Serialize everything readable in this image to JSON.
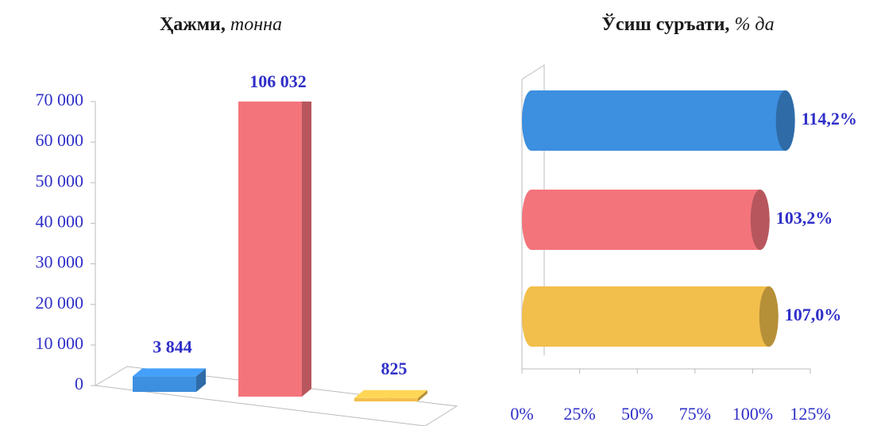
{
  "chart_data": [
    {
      "type": "bar3d",
      "title": "Ҳажми,",
      "title_unit": "тонна",
      "values": [
        3844,
        106032,
        825
      ],
      "value_labels": [
        "3 844",
        "106 032",
        "825"
      ],
      "colors": [
        "#3d8fdf",
        "#f4747c",
        "#f2bf4c"
      ],
      "ylim": [
        0,
        70000
      ],
      "yticks": [
        {
          "value": 0,
          "label": "0"
        },
        {
          "value": 10000,
          "label": "10 000"
        },
        {
          "value": 20000,
          "label": "20 000"
        },
        {
          "value": 30000,
          "label": "30 000"
        },
        {
          "value": 40000,
          "label": "40 000"
        },
        {
          "value": 50000,
          "label": "50 000"
        },
        {
          "value": 60000,
          "label": "60 000"
        },
        {
          "value": 70000,
          "label": "70 000"
        }
      ]
    },
    {
      "type": "cylinder",
      "title": "Ўсиш суръати,",
      "title_unit": "% да",
      "values": [
        114.2,
        103.2,
        107.0
      ],
      "value_labels": [
        "114,2%",
        "103,2%",
        "107,0%"
      ],
      "colors": [
        "#3d8fdf",
        "#f4747c",
        "#f2bf4c"
      ],
      "xlim": [
        0,
        125
      ],
      "xticks": [
        {
          "value": 0,
          "label": "0%"
        },
        {
          "value": 25,
          "label": "25%"
        },
        {
          "value": 50,
          "label": "50%"
        },
        {
          "value": 75,
          "label": "75%"
        },
        {
          "value": 100,
          "label": "100%"
        },
        {
          "value": 125,
          "label": "125%"
        }
      ]
    }
  ]
}
